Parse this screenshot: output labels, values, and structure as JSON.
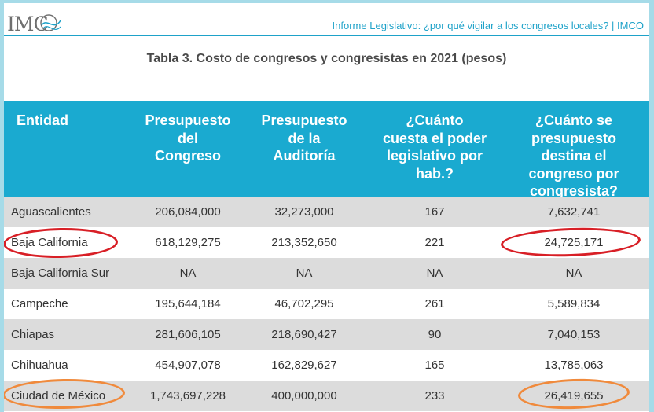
{
  "header": {
    "logo_text": "IMC",
    "title": "Informe Legislativo: ¿por qué vigilar a los congresos locales? | IMCO"
  },
  "table": {
    "title": "Tabla 3. Costo de congresos y congresistas en 2021 (pesos)",
    "columns": [
      [
        "Entidad"
      ],
      [
        "Presupuesto",
        "del",
        "Congreso"
      ],
      [
        "Presupuesto",
        "de la",
        "Auditoría"
      ],
      [
        "¿Cuánto",
        "cuesta el poder",
        "legislativo por",
        "hab.?"
      ],
      [
        "¿Cuánto se",
        "presupuesto",
        "destina el",
        "congreso por",
        "congresista?"
      ]
    ],
    "rows": [
      [
        "Aguascalientes",
        "206,084,000",
        "32,273,000",
        "167",
        "7,632,741"
      ],
      [
        "Baja California",
        "618,129,275",
        "213,352,650",
        "221",
        "24,725,171"
      ],
      [
        "Baja California Sur",
        "NA",
        "NA",
        "NA",
        "NA"
      ],
      [
        "Campeche",
        "195,644,184",
        "46,702,295",
        "261",
        "5,589,834"
      ],
      [
        "Chiapas",
        "281,606,105",
        "218,690,427",
        "90",
        "7,040,153"
      ],
      [
        "Chihuahua",
        "454,907,078",
        "162,829,627",
        "165",
        "13,785,063"
      ],
      [
        "Ciudad de México",
        "1,743,697,228",
        "400,000,000",
        "233",
        "26,419,655"
      ]
    ]
  },
  "annotations": {
    "red": "#d81f26",
    "orange": "#f08a3c"
  }
}
